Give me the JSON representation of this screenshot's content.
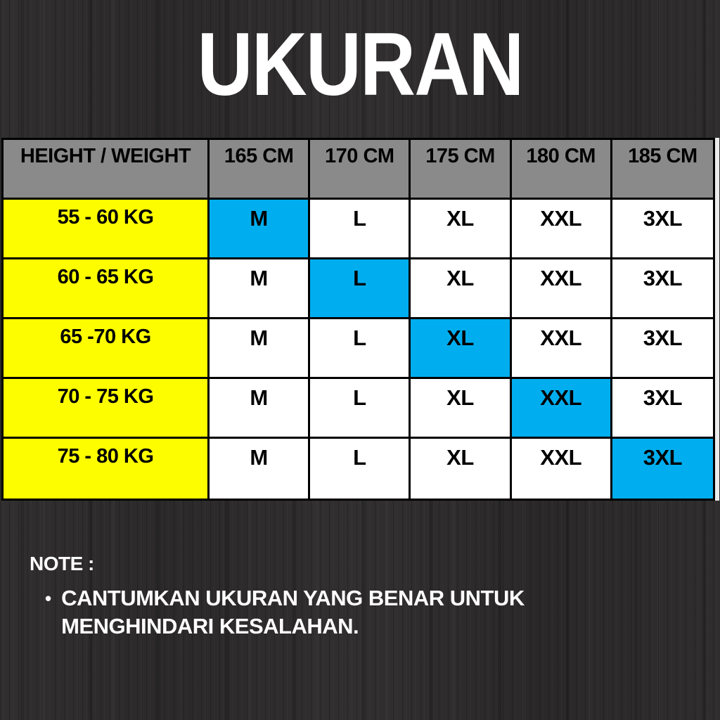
{
  "title": "UKURAN",
  "table": {
    "header": [
      "HEIGHT / WEIGHT",
      "165 CM",
      "170 CM",
      "175 CM",
      "180 CM",
      "185 CM"
    ],
    "rows": [
      {
        "weight": "55 - 60 KG",
        "sizes": [
          "M",
          "L",
          "XL",
          "XXL",
          "3XL"
        ],
        "highlight_col": 0
      },
      {
        "weight": "60 - 65 KG",
        "sizes": [
          "M",
          "L",
          "XL",
          "XXL",
          "3XL"
        ],
        "highlight_col": 1
      },
      {
        "weight": "65 -70 KG",
        "sizes": [
          "M",
          "L",
          "XL",
          "XXL",
          "3XL"
        ],
        "highlight_col": 2
      },
      {
        "weight": "70 - 75 KG",
        "sizes": [
          "M",
          "L",
          "XL",
          "XXL",
          "3XL"
        ],
        "highlight_col": 3
      },
      {
        "weight": "75 - 80 KG",
        "sizes": [
          "M",
          "L",
          "XL",
          "XXL",
          "3XL"
        ],
        "highlight_col": 4
      }
    ]
  },
  "chart_data": {
    "type": "table",
    "title": "UKURAN",
    "columns": [
      "HEIGHT / WEIGHT",
      "165 CM",
      "170 CM",
      "175 CM",
      "180 CM",
      "185 CM"
    ],
    "rows": [
      [
        "55 - 60 KG",
        "M",
        "L",
        "XL",
        "XXL",
        "3XL"
      ],
      [
        "60 - 65 KG",
        "M",
        "L",
        "XL",
        "XXL",
        "3XL"
      ],
      [
        "65 -70 KG",
        "M",
        "L",
        "XL",
        "XXL",
        "3XL"
      ],
      [
        "70 - 75 KG",
        "M",
        "L",
        "XL",
        "XXL",
        "3XL"
      ],
      [
        "75 - 80 KG",
        "M",
        "L",
        "XL",
        "XXL",
        "3XL"
      ]
    ],
    "highlighted_cells": [
      {
        "row": 0,
        "column": "165 CM",
        "value": "M"
      },
      {
        "row": 1,
        "column": "170 CM",
        "value": "L"
      },
      {
        "row": 2,
        "column": "175 CM",
        "value": "XL"
      },
      {
        "row": 3,
        "column": "180 CM",
        "value": "XXL"
      },
      {
        "row": 4,
        "column": "185 CM",
        "value": "3XL"
      }
    ]
  },
  "note": {
    "label": "NOTE :",
    "bullet": "•",
    "bullets": [
      "CANTUMKAN UKURAN YANG BENAR UNTUK MENGHINDARI KESALAHAN."
    ]
  },
  "colors": {
    "highlight": "#00aeef",
    "weight_col": "#fdfd00",
    "header_bg": "#8a8a8a",
    "cell_bg": "#ffffff",
    "border": "#000000",
    "text": "#000000",
    "page_text": "#ffffff"
  }
}
